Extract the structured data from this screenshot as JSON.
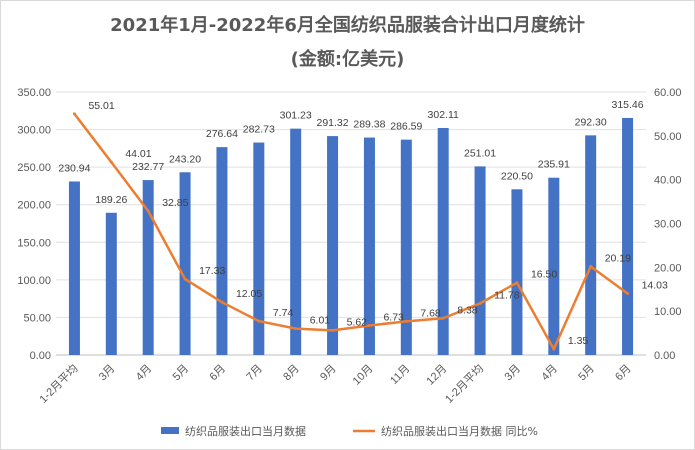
{
  "chart_data": {
    "type": "bar",
    "title": "2021年1月-2022年6月全国纺织品服装合计出口月度统计",
    "subtitle": "(金额:亿美元)",
    "categories": [
      "1-2月平均",
      "3月",
      "4月",
      "5月",
      "6月",
      "7月",
      "8月",
      "9月",
      "10月",
      "11月",
      "12月",
      "1-2月平均",
      "3月",
      "4月",
      "5月",
      "6月"
    ],
    "series": [
      {
        "name": "纺织品服装出口当月数据",
        "type": "bar",
        "axis": "left",
        "color": "#4472c4",
        "values": [
          230.94,
          189.26,
          232.77,
          243.2,
          276.64,
          282.73,
          301.23,
          291.32,
          289.38,
          286.59,
          302.11,
          251.01,
          220.5,
          235.91,
          292.3,
          315.46
        ],
        "labels": [
          "230.94",
          "189.26",
          "232.77",
          "243.20",
          "276.64",
          "282.73",
          "301.23",
          "291.32",
          "289.38",
          "286.59",
          "302.11",
          "251.01",
          "220.50",
          "235.91",
          "292.30",
          "315.46"
        ]
      },
      {
        "name": "纺织品服装出口当月数据 同比%",
        "type": "line",
        "axis": "right",
        "color": "#ed7d31",
        "values": [
          55.01,
          44.01,
          32.85,
          17.33,
          12.05,
          7.74,
          6.01,
          5.62,
          6.73,
          7.68,
          8.38,
          11.78,
          16.5,
          1.35,
          20.19,
          14.03
        ],
        "labels": [
          "55.01",
          "44.01",
          "32.85",
          "17.33",
          "12.05",
          "7.74",
          "6.01",
          "5.62",
          "6.73",
          "7.68",
          "8.38",
          "11.78",
          "16.50",
          "1.35",
          "20.19",
          "14.03"
        ]
      }
    ],
    "y_left": {
      "range": [
        0,
        350
      ],
      "ticks": [
        "0.00",
        "50.00",
        "100.00",
        "150.00",
        "200.00",
        "250.00",
        "300.00",
        "350.00"
      ]
    },
    "y_right": {
      "range": [
        0,
        60
      ],
      "ticks": [
        "0.00",
        "10.00",
        "20.00",
        "30.00",
        "40.00",
        "50.00",
        "60.00"
      ]
    },
    "grid": true,
    "legend": "bottom"
  }
}
